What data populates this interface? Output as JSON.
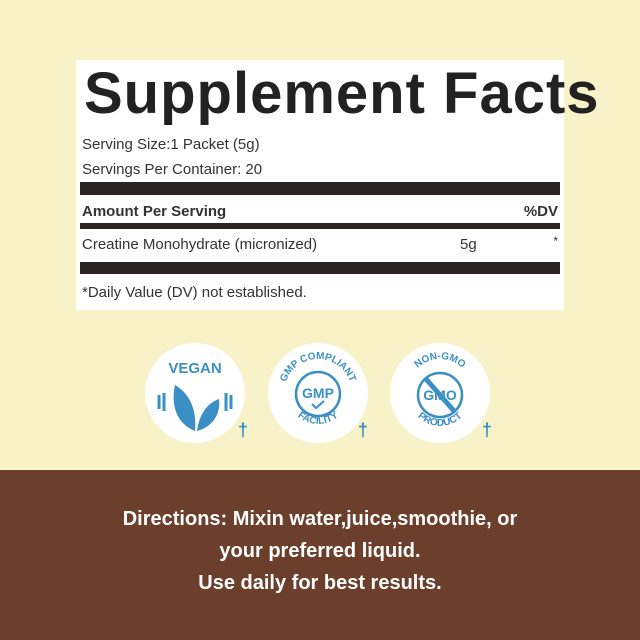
{
  "label": {
    "title": "Supplement Facts",
    "serving_size": "Serving Size:1 Packet (5g)",
    "servings_per_container": "Servings Per Container: 20",
    "amount_header": "Amount Per Serving",
    "dv_header": "%DV",
    "ingredient": {
      "name": "Creatine Monohydrate (micronized)",
      "amount": "5g",
      "dv": "*"
    },
    "footnote": "*Daily Value (DV) not established."
  },
  "badges": [
    {
      "text": "VEGAN",
      "mark": "†"
    },
    {
      "top": "GMP COMPLIANT",
      "center": "GMP",
      "bottom": "FACILITY",
      "mark": "†"
    },
    {
      "top": "NON-GMO",
      "center": "GMO",
      "bottom": "PRODUCT",
      "mark": "†"
    }
  ],
  "directions": [
    "Directions: Mixin water,juice,smoothie, or",
    "your preferred liquid.",
    "Use daily for best results."
  ],
  "colors": {
    "background": "#f8f2c8",
    "brown": "#6b3f2b",
    "badge_blue": "#3a8fc4"
  }
}
